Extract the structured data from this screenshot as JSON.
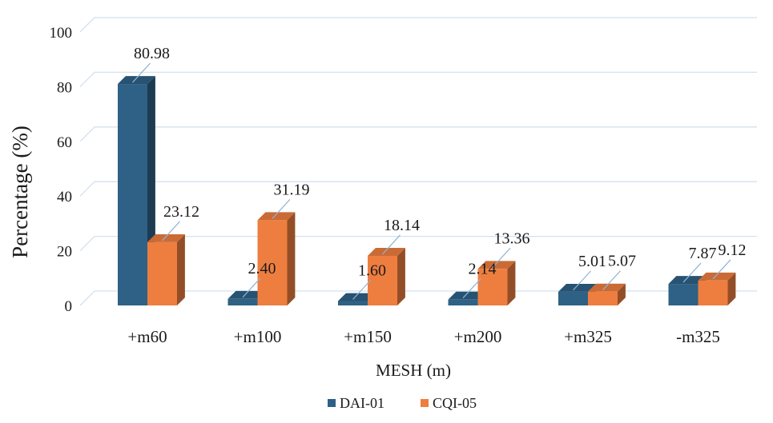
{
  "chart_data": {
    "type": "bar",
    "categories": [
      "+m60",
      "+m100",
      "+m150",
      "+m200",
      "+m325",
      "-m325"
    ],
    "series": [
      {
        "name": "DAI-01",
        "values": [
          80.98,
          2.4,
          1.6,
          2.14,
          5.01,
          7.87
        ],
        "labels": [
          "80.98",
          "2.40",
          "1.60",
          "2.14",
          "5.01",
          "7.87"
        ],
        "color": "#2e6185"
      },
      {
        "name": "CQI-05",
        "values": [
          23.12,
          31.19,
          18.14,
          13.36,
          5.07,
          9.12
        ],
        "labels": [
          "23.12",
          "31.19",
          "18.14",
          "13.36",
          "5.07",
          "9.12"
        ],
        "color": "#ee7e3f"
      }
    ],
    "yticks": [
      "0",
      "20",
      "40",
      "60",
      "80",
      "100"
    ],
    "ylim": [
      0,
      100
    ],
    "xlabel": "MESH (m)",
    "ylabel": "Percentage (%)",
    "grid": true,
    "legend_position": "bottom",
    "style": "3d-column"
  }
}
